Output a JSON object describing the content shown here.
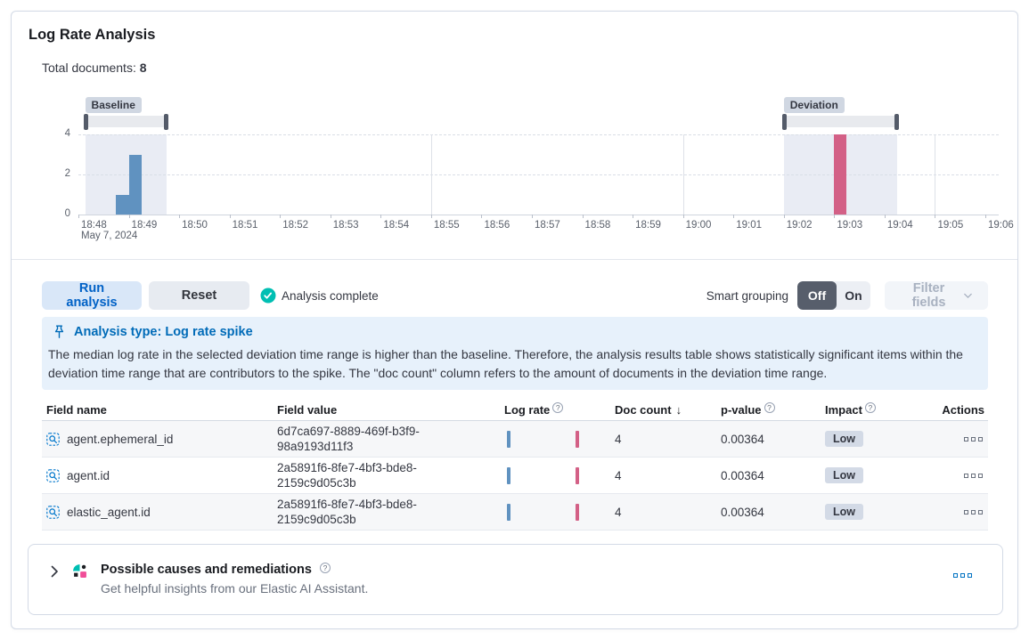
{
  "panel": {
    "title": "Log Rate Analysis",
    "total_documents_label": "Total documents:",
    "total_documents_value": "8"
  },
  "chart_data": {
    "type": "bar",
    "title": "Document count histogram with baseline and deviation time range brushes",
    "time_domain": [
      "18:48:00",
      "19:06:00"
    ],
    "x_ticks": [
      "18:48",
      "18:49",
      "18:50",
      "18:51",
      "18:52",
      "18:53",
      "18:54",
      "18:55",
      "18:56",
      "18:57",
      "18:58",
      "18:59",
      "19:00",
      "19:01",
      "19:02",
      "19:03",
      "19:04",
      "19:05",
      "19:06"
    ],
    "x_date_label": "May 7, 2024",
    "major_gridlines": [
      "18:55",
      "19:00",
      "19:05"
    ],
    "y_ticks": [
      0,
      2,
      4
    ],
    "ylim": [
      0,
      4
    ],
    "bucket_interval_seconds": 15,
    "baseline": {
      "label": "Baseline",
      "window": [
        "18:48:08",
        "18:49:45"
      ],
      "color": "#6092C0",
      "bars": [
        {
          "time": "18:48:45",
          "value": 1
        },
        {
          "time": "18:49:00",
          "value": 3
        }
      ]
    },
    "deviation": {
      "label": "Deviation",
      "window": [
        "19:02:00",
        "19:04:15"
      ],
      "color": "#D36086",
      "bars": [
        {
          "time": "19:03:00",
          "value": 4
        }
      ]
    }
  },
  "controls": {
    "run_label": "Run analysis",
    "reset_label": "Reset",
    "status_label": "Analysis complete",
    "smart_grouping_label": "Smart grouping",
    "off_label": "Off",
    "on_label": "On",
    "filter_fields_label": "Filter fields"
  },
  "callout": {
    "title": "Analysis type: Log rate spike",
    "body": "The median log rate in the selected deviation time range is higher than the baseline. Therefore, the analysis results table shows statistically significant items within the deviation time range that are contributors to the spike. The \"doc count\" column refers to the amount of documents in the deviation time range."
  },
  "table": {
    "headers": {
      "field_name": "Field name",
      "field_value": "Field value",
      "log_rate": "Log rate",
      "doc_count": "Doc count",
      "p_value": "p-value",
      "impact": "Impact",
      "actions": "Actions"
    },
    "rows": [
      {
        "field_name": "agent.ephemeral_id",
        "field_value": "6d7ca697-8889-469f-b3f9-98a9193d11f3",
        "doc_count": "4",
        "p_value": "0.00364",
        "impact": "Low"
      },
      {
        "field_name": "agent.id",
        "field_value": "2a5891f6-8fe7-4bf3-bde8-2159c9d05c3b",
        "doc_count": "4",
        "p_value": "0.00364",
        "impact": "Low"
      },
      {
        "field_name": "elastic_agent.id",
        "field_value": "2a5891f6-8fe7-4bf3-bde8-2159c9d05c3b",
        "doc_count": "4",
        "p_value": "0.00364",
        "impact": "Low"
      }
    ]
  },
  "footer": {
    "title": "Possible causes and remediations",
    "subtitle": "Get helpful insights from our Elastic AI Assistant."
  },
  "icons": {
    "question": "?",
    "sort_desc": "↓"
  },
  "colors": {
    "primary": "#0071c2",
    "vis_blue": "#6092C0",
    "vis_pink": "#D36086",
    "success": "#00BFB3",
    "callout_bg": "#e7f1fb"
  }
}
